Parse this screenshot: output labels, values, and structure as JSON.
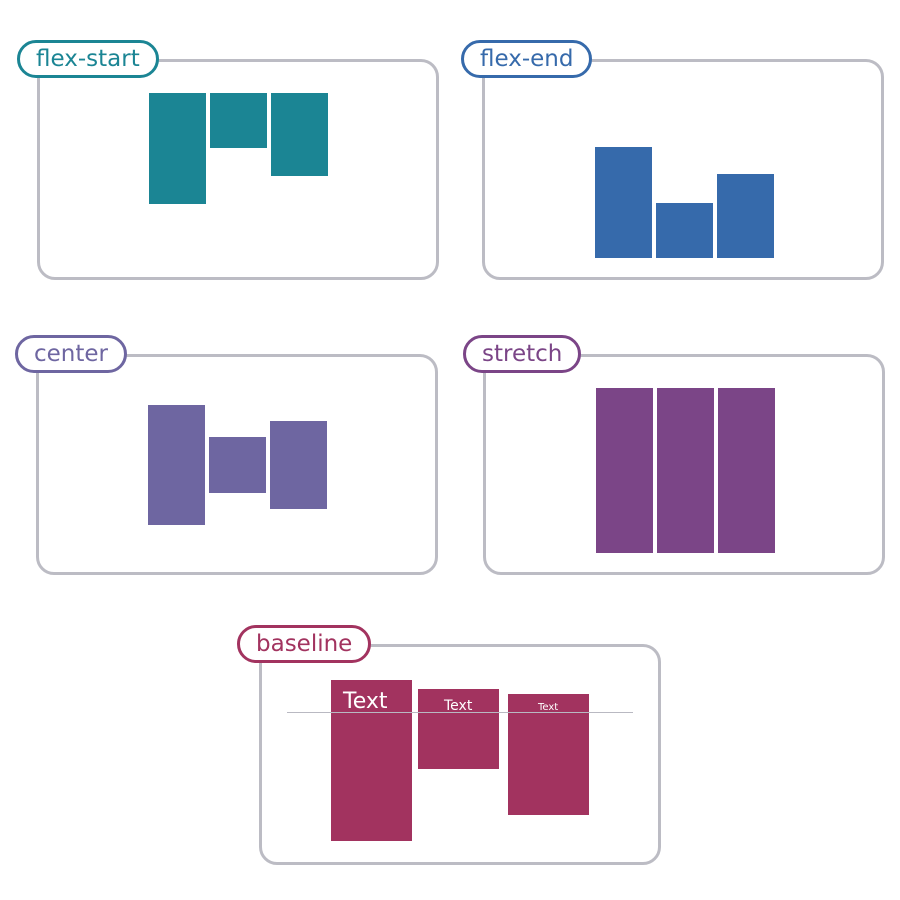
{
  "colors": {
    "border": "#bcbcc4",
    "flex_start": "#1b8594",
    "flex_end": "#366aab",
    "center": "#6e66a1",
    "stretch": "#7b4587",
    "baseline": "#a2335f"
  },
  "panels": {
    "flex_start": {
      "label": "flex-start"
    },
    "flex_end": {
      "label": "flex-end"
    },
    "center": {
      "label": "center"
    },
    "stretch": {
      "label": "stretch"
    },
    "baseline": {
      "label": "baseline",
      "items": [
        {
          "text": "Text"
        },
        {
          "text": "Text"
        },
        {
          "text": "Text"
        }
      ]
    }
  }
}
